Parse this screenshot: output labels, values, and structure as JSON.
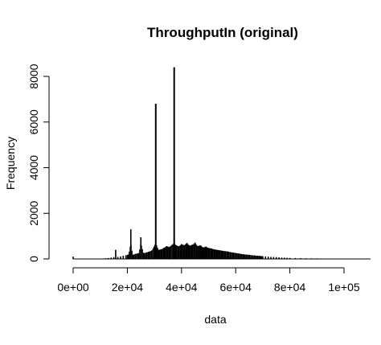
{
  "chart_data": {
    "type": "bar",
    "title": "ThroughputIn  (original)",
    "xlabel": "data",
    "ylabel": "Frequency",
    "xlim": [
      0,
      110000
    ],
    "ylim": [
      0,
      8500
    ],
    "x_ticks": [
      0,
      20000,
      40000,
      60000,
      80000,
      100000
    ],
    "x_tick_labels": [
      "0e+00",
      "2e+04",
      "4e+04",
      "6e+04",
      "8e+04",
      "1e+05"
    ],
    "y_ticks": [
      0,
      2000,
      4000,
      6000,
      8000
    ],
    "y_tick_labels": [
      "0",
      "2000",
      "4000",
      "6000",
      "8000"
    ],
    "grid": false,
    "bins_x": [
      0,
      11000,
      12000,
      13000,
      14000,
      15000,
      15700,
      16500,
      17500,
      18500,
      19500,
      20500,
      21300,
      22000,
      23000,
      24300,
      25000,
      26000,
      27000,
      28000,
      29000,
      30500,
      31500,
      32500,
      33500,
      34500,
      35500,
      37300,
      38000,
      39000,
      40000,
      41000,
      42000,
      43000,
      44000,
      45000,
      46000,
      47000,
      48000,
      49000,
      50000,
      51000,
      52000,
      53000,
      54000,
      55000,
      56000,
      57000,
      58000,
      59000,
      60000,
      61000,
      62000,
      63000,
      64000,
      65000,
      66000,
      67000,
      68000,
      69000,
      70000,
      71000,
      72000,
      73000,
      74000,
      75000,
      76000,
      77000,
      78000,
      79000,
      80000,
      82000,
      84000,
      86000,
      88000,
      90000,
      92000,
      94000,
      96000,
      98000,
      100000
    ],
    "values": [
      100,
      20,
      30,
      40,
      60,
      80,
      400,
      90,
      110,
      140,
      160,
      200,
      1300,
      180,
      220,
      260,
      950,
      250,
      280,
      320,
      360,
      6800,
      400,
      420,
      480,
      560,
      520,
      8400,
      600,
      550,
      650,
      600,
      700,
      580,
      620,
      720,
      560,
      600,
      500,
      540,
      480,
      460,
      420,
      400,
      380,
      360,
      340,
      330,
      300,
      280,
      260,
      240,
      220,
      200,
      190,
      180,
      160,
      150,
      140,
      130,
      120,
      110,
      100,
      90,
      85,
      80,
      70,
      60,
      55,
      50,
      45,
      40,
      35,
      30,
      28,
      25,
      20,
      15,
      12,
      10,
      8
    ]
  }
}
